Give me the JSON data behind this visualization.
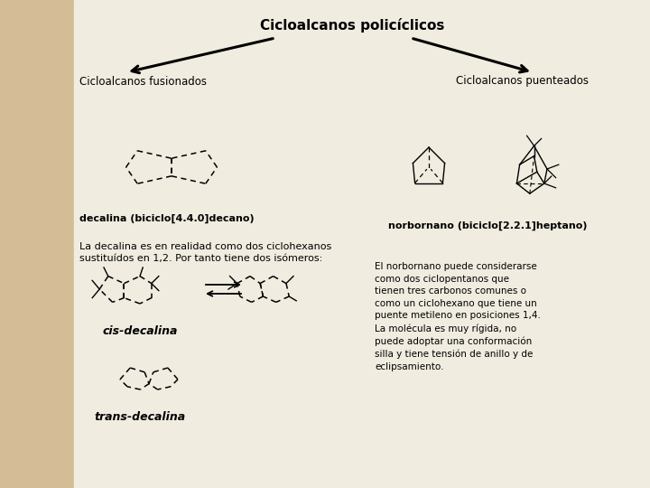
{
  "bg_left_color": "#d4bc96",
  "bg_right_color": "#f0ece0",
  "title": "Cicloalcanos policíclicos",
  "left_subtitle": "Cicloalcanos fusionados",
  "right_subtitle": "Cicloalcanos puenteados",
  "decalina_label": "decalina (biciclo[4.4.0]decano)",
  "norbornano_label": "norbornano (biciclo[2.2.1]heptano)",
  "cis_label": "cis-decalina",
  "trans_label": "trans-decalina",
  "left_text": "La decalina es en realidad como dos ciclohexanos\nsustituídos en 1,2. Por tanto tiene dos isómeros:",
  "right_text": "El norbornano puede considerarse\ncomo dos ciclopentanos que\ntienen tres carbonos comunes o\ncomo un ciclohexano que tiene un\npuente metileno en posiciones 1,4.\nLa molécula es muy rígida, no\npuede adoptar una conformación\nsilla y tiene tensión de anillo y de\neclipsamiento."
}
